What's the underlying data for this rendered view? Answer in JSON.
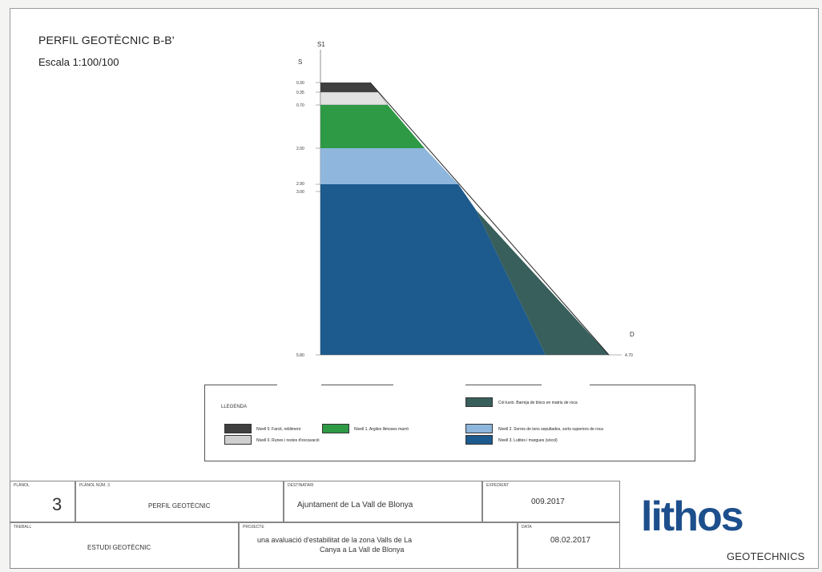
{
  "title": "PERFIL GEOTÈCNIC B-B'",
  "scale": "Escala 1:100/100",
  "profile": {
    "top_label_left": "S1",
    "top_label_left2": "S",
    "right_label": "D",
    "right_depth": "4.70",
    "depth_labels": [
      "0.30",
      "0.35",
      "0.70",
      "2.00",
      "2.90",
      "3.00",
      "5.80"
    ],
    "colors": {
      "fill_soil": "#3f3f3f",
      "rubble": "#e2e2e2",
      "clay": "#2f9a46",
      "sand": "#8fb6dc",
      "marl": "#1d5a8e",
      "colluvium": "#385f5b"
    }
  },
  "legend": {
    "heading": "LLEGENDA",
    "items": [
      {
        "label": "Nivell 0. Farcit, rebliment",
        "color": "#3f3f3f"
      },
      {
        "label": "Nivell 0. Runes i restes d'excavació",
        "color": "#cfcfcf"
      },
      {
        "label": "Nivell 1. Argiles llimoses marró",
        "color": "#2f9a46"
      },
      {
        "label": "Col·luvió. Barreja de blocs en matriu de roca",
        "color": "#385f5b"
      },
      {
        "label": "Nivell 2. Sorres de tons sepultades, sorts superiors de roca",
        "color": "#8fb6dc"
      },
      {
        "label": "Nivell 3. Lutites i margues (sòcol)",
        "color": "#1d5a8e"
      }
    ]
  },
  "titleblock": {
    "sheet_label": "PLÀNOL",
    "sheet_number": "3",
    "plan_label": "PLÀNOL NÚM. 3",
    "plan_value": "PERFIL GEOTÈCNIC",
    "client_label": "DESTINATARI",
    "client_value": "Ajuntament de La Vall de Blonya",
    "exp_label": "EXPEDIENT",
    "exp_value": "009.2017",
    "work_label": "TREBALL",
    "work_value": "ESTUDI GEOTÈCNIC",
    "project_label": "PROJECTE",
    "project_line1": "una avaluació d'estabilitat de la zona Valls de La",
    "project_line2": "Canya a La Vall de Blonya",
    "date_label": "DATA",
    "date_value": "08.02.2017",
    "logo_main": "lithos",
    "logo_sub": "GEOTECHNICS"
  }
}
